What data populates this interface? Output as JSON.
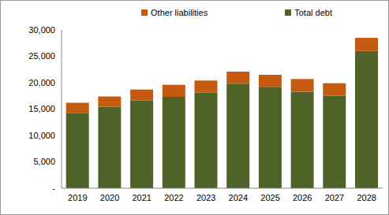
{
  "chart_data": {
    "type": "bar",
    "stacked": true,
    "grid": false,
    "legend": "top",
    "categories": [
      "2019",
      "2020",
      "2021",
      "2022",
      "2023",
      "2024",
      "2025",
      "2026",
      "2027",
      "2028"
    ],
    "series": [
      {
        "name": "Total debt",
        "color": "#4f6228",
        "values": [
          14200,
          15400,
          16600,
          17300,
          18100,
          19800,
          19200,
          18300,
          17500,
          26000
        ]
      },
      {
        "name": "Other liabilities",
        "color": "#c55a11",
        "values": [
          2000,
          2000,
          2100,
          2300,
          2300,
          2300,
          2300,
          2400,
          2400,
          2500
        ]
      }
    ],
    "ylim": [
      0,
      30000
    ],
    "yticks": [
      {
        "value": 0,
        "label": "-"
      },
      {
        "value": 5000,
        "label": "5,000"
      },
      {
        "value": 10000,
        "label": "10,000"
      },
      {
        "value": 15000,
        "label": "15,000"
      },
      {
        "value": 20000,
        "label": "20,000"
      },
      {
        "value": 25000,
        "label": "25,000"
      },
      {
        "value": 30000,
        "label": "30,000"
      }
    ]
  }
}
